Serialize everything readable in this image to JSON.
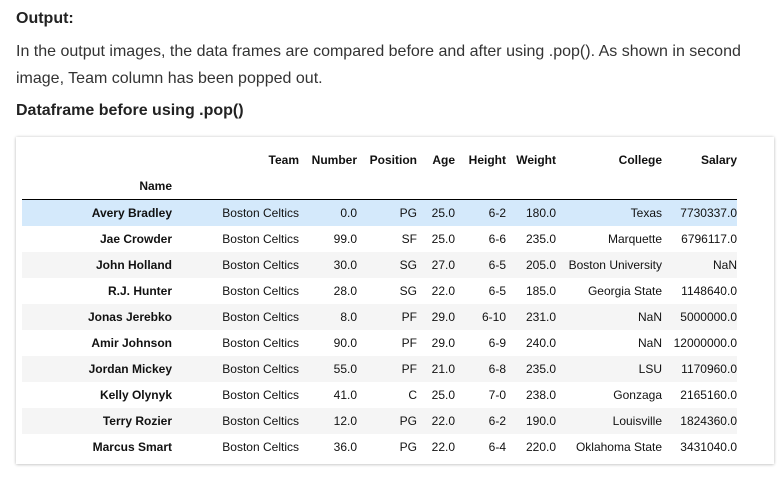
{
  "output_heading": "Output:",
  "description": "In the output images, the data frames are compared before and after using .pop(). As shown in second image, Team column has been popped out.",
  "dataframe_heading": "Dataframe before using .pop()",
  "table": {
    "index_name": "Name",
    "columns": [
      "Team",
      "Number",
      "Position",
      "Age",
      "Height",
      "Weight",
      "College",
      "Salary"
    ],
    "rows": [
      {
        "name": "Avery Bradley",
        "cells": [
          "Boston Celtics",
          "0.0",
          "PG",
          "25.0",
          "6-2",
          "180.0",
          "Texas",
          "7730337.0"
        ]
      },
      {
        "name": "Jae Crowder",
        "cells": [
          "Boston Celtics",
          "99.0",
          "SF",
          "25.0",
          "6-6",
          "235.0",
          "Marquette",
          "6796117.0"
        ]
      },
      {
        "name": "John Holland",
        "cells": [
          "Boston Celtics",
          "30.0",
          "SG",
          "27.0",
          "6-5",
          "205.0",
          "Boston University",
          "NaN"
        ]
      },
      {
        "name": "R.J. Hunter",
        "cells": [
          "Boston Celtics",
          "28.0",
          "SG",
          "22.0",
          "6-5",
          "185.0",
          "Georgia State",
          "1148640.0"
        ]
      },
      {
        "name": "Jonas Jerebko",
        "cells": [
          "Boston Celtics",
          "8.0",
          "PF",
          "29.0",
          "6-10",
          "231.0",
          "NaN",
          "5000000.0"
        ]
      },
      {
        "name": "Amir Johnson",
        "cells": [
          "Boston Celtics",
          "90.0",
          "PF",
          "29.0",
          "6-9",
          "240.0",
          "NaN",
          "12000000.0"
        ]
      },
      {
        "name": "Jordan Mickey",
        "cells": [
          "Boston Celtics",
          "55.0",
          "PF",
          "21.0",
          "6-8",
          "235.0",
          "LSU",
          "1170960.0"
        ]
      },
      {
        "name": "Kelly Olynyk",
        "cells": [
          "Boston Celtics",
          "41.0",
          "C",
          "25.0",
          "7-0",
          "238.0",
          "Gonzaga",
          "2165160.0"
        ]
      },
      {
        "name": "Terry Rozier",
        "cells": [
          "Boston Celtics",
          "12.0",
          "PG",
          "22.0",
          "6-2",
          "190.0",
          "Louisville",
          "1824360.0"
        ]
      },
      {
        "name": "Marcus Smart",
        "cells": [
          "Boston Celtics",
          "36.0",
          "PG",
          "22.0",
          "6-4",
          "220.0",
          "Oklahoma State",
          "3431040.0"
        ]
      }
    ]
  },
  "colors": {
    "highlight_row": "#d4e9fb",
    "stripe_row": "#f5f5f5"
  }
}
